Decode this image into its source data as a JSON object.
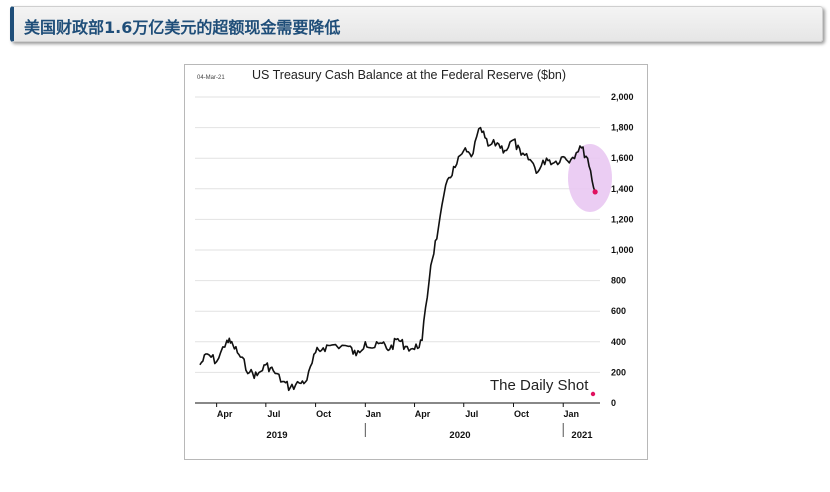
{
  "banner": {
    "title": "美国财政部1.6万亿美元的超额现金需要降低"
  },
  "chart_data": {
    "type": "line",
    "date_stamp": "04-Mar-21",
    "title": "US Treasury Cash Balance at the Federal Reserve ($bn)",
    "xlabel": "",
    "ylabel": "",
    "ylim": [
      0,
      2000
    ],
    "y_ticks": [
      0,
      200,
      400,
      600,
      800,
      1000,
      1200,
      1400,
      1600,
      1800,
      2000
    ],
    "y_tick_labels": [
      "0",
      "200",
      "400",
      "600",
      "800",
      "1,000",
      "1,200",
      "1,400",
      "1,600",
      "1,800",
      "2,000"
    ],
    "x_tick_labels": [
      "Apr",
      "Jul",
      "Oct",
      "Jan",
      "Apr",
      "Jul",
      "Oct",
      "Jan"
    ],
    "x_group_labels": [
      "2019",
      "2020",
      "2021"
    ],
    "grid": true,
    "watermark": "The Daily Shot",
    "highlight": "circle around the most recent decline",
    "series": [
      {
        "x": [
          "2019-03-01",
          "2019-03-15",
          "2019-04-01",
          "2019-04-20",
          "2019-05-01",
          "2019-05-15",
          "2019-06-01",
          "2019-06-15",
          "2019-07-01",
          "2019-07-15",
          "2019-08-01",
          "2019-08-15",
          "2019-09-01",
          "2019-09-15",
          "2019-10-01",
          "2019-10-15",
          "2019-11-01",
          "2019-12-01",
          "2019-12-15",
          "2020-01-01",
          "2020-01-15",
          "2020-02-01",
          "2020-02-15",
          "2020-03-01",
          "2020-03-15",
          "2020-04-01",
          "2020-04-15",
          "2020-05-01",
          "2020-05-15",
          "2020-06-01",
          "2020-06-15",
          "2020-07-01",
          "2020-07-15",
          "2020-08-01",
          "2020-08-15",
          "2020-09-01",
          "2020-09-15",
          "2020-10-01",
          "2020-10-15",
          "2020-11-01",
          "2020-11-15",
          "2020-12-01",
          "2020-12-15",
          "2021-01-01",
          "2021-01-15",
          "2021-02-01",
          "2021-02-15",
          "2021-03-01"
        ],
        "y": [
          250,
          320,
          270,
          410,
          380,
          300,
          200,
          180,
          250,
          210,
          140,
          100,
          130,
          150,
          330,
          360,
          380,
          370,
          310,
          400,
          360,
          390,
          350,
          420,
          370,
          350,
          410,
          900,
          1140,
          1460,
          1540,
          1650,
          1610,
          1800,
          1680,
          1700,
          1650,
          1720,
          1620,
          1590,
          1510,
          1600,
          1570,
          1610,
          1590,
          1680,
          1600,
          1380
        ]
      }
    ]
  }
}
